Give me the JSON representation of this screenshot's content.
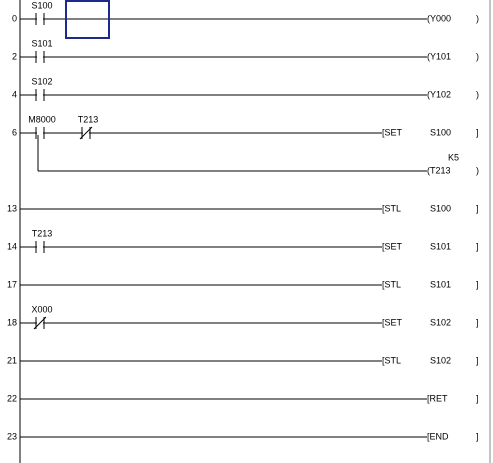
{
  "rungs": [
    {
      "step": "0",
      "contacts": [
        {
          "label": "S100",
          "kind": "no"
        }
      ],
      "outputs": [
        {
          "instruction": "(Y000",
          "close": ")"
        }
      ]
    },
    {
      "step": "2",
      "contacts": [
        {
          "label": "S101",
          "kind": "no"
        }
      ],
      "outputs": [
        {
          "instruction": "(Y101",
          "close": ")"
        }
      ]
    },
    {
      "step": "4",
      "contacts": [
        {
          "label": "S102",
          "kind": "no"
        }
      ],
      "outputs": [
        {
          "instruction": "(Y102",
          "close": ")"
        }
      ]
    },
    {
      "step": "6",
      "contacts": [
        {
          "label": "M8000",
          "kind": "no"
        },
        {
          "label": "T213",
          "kind": "nc"
        }
      ],
      "outputs": [
        {
          "instruction": "[SET",
          "operand": "S100",
          "close": "]"
        },
        {
          "instruction": "(T213",
          "constant": "K5",
          "close": ")"
        }
      ]
    },
    {
      "step": "13",
      "contacts": [],
      "outputs": [
        {
          "instruction": "[STL",
          "operand": "S100",
          "close": "]"
        }
      ]
    },
    {
      "step": "14",
      "contacts": [
        {
          "label": "T213",
          "kind": "no"
        }
      ],
      "outputs": [
        {
          "instruction": "[SET",
          "operand": "S101",
          "close": "]"
        }
      ]
    },
    {
      "step": "17",
      "contacts": [],
      "outputs": [
        {
          "instruction": "[STL",
          "operand": "S101",
          "close": "]"
        }
      ]
    },
    {
      "step": "18",
      "contacts": [
        {
          "label": "X000",
          "kind": "nc"
        }
      ],
      "outputs": [
        {
          "instruction": "[SET",
          "operand": "S102",
          "close": "]"
        }
      ]
    },
    {
      "step": "21",
      "contacts": [],
      "outputs": [
        {
          "instruction": "[STL",
          "operand": "S102",
          "close": "]"
        }
      ]
    },
    {
      "step": "22",
      "contacts": [],
      "outputs": [
        {
          "instruction": "[RET",
          "close": "]"
        }
      ]
    },
    {
      "step": "23",
      "contacts": [],
      "outputs": [
        {
          "instruction": "[END",
          "close": "]"
        }
      ]
    }
  ]
}
